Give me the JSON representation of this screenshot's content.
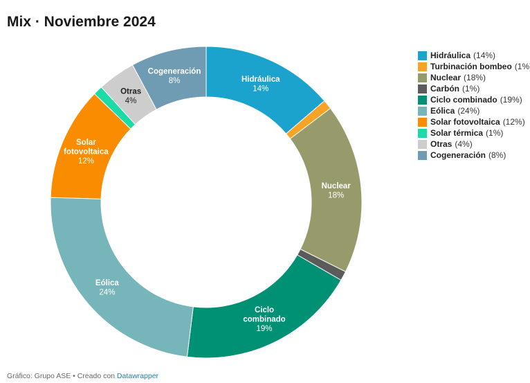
{
  "title": "Mix · Noviembre 2024",
  "footer": {
    "source": "Gráfico: Grupo ASE • Creado con ",
    "link": "Datawrapper"
  },
  "chart_data": {
    "type": "pie",
    "title": "Mix · Noviembre 2024",
    "donut": true,
    "legend_position": "right",
    "unit": "%",
    "slices": [
      {
        "name": "Hidráulica",
        "legend": "Hidráulica",
        "value": 14,
        "label": "14%",
        "color": "#1ba3ce",
        "label_color": "#ffffff",
        "show_label": true
      },
      {
        "name": "Turbinación bombeo",
        "legend": "Turbinación bombeo",
        "value": 1,
        "label": "1%",
        "color": "#f7a326",
        "label_color": "#ffffff",
        "show_label": false
      },
      {
        "name": "Nuclear",
        "legend": "Nuclear",
        "value": 18,
        "label": "18%",
        "color": "#979b6c",
        "label_color": "#ffffff",
        "show_label": true
      },
      {
        "name": "Carbón",
        "legend": "Carbón",
        "value": 1,
        "label": "1%",
        "color": "#5b5b5b",
        "label_color": "#ffffff",
        "show_label": false
      },
      {
        "name": "Ciclo combinado",
        "legend": "Ciclo combinado ",
        "value": 19,
        "label": "19%",
        "color": "#009175",
        "label_color": "#ffffff",
        "show_label": true
      },
      {
        "name": "Eólica",
        "legend": "Eólica",
        "value": 24,
        "label": "24%",
        "color": "#76b5b9",
        "label_color": "#ffffff",
        "show_label": true
      },
      {
        "name": "Solar fotovoltaica",
        "legend": "Solar fotovoltaica",
        "value": 12,
        "label": "12%",
        "color": "#f98c00",
        "label_color": "#ffffff",
        "show_label": true
      },
      {
        "name": "Solar térmica",
        "legend": "Solar térmica",
        "value": 1,
        "label": "1%",
        "color": "#1ddba6",
        "label_color": "#ffffff",
        "show_label": false
      },
      {
        "name": "Otras",
        "legend": "Otras",
        "value": 4,
        "label": "4%",
        "color": "#cdcdcd",
        "label_color": "#222222",
        "show_label": true
      },
      {
        "name": "Cogeneración",
        "legend": "Cogeneración",
        "value": 8,
        "label": "8%",
        "color": "#6f9bb3",
        "label_color": "#ffffff",
        "show_label": true
      }
    ]
  }
}
